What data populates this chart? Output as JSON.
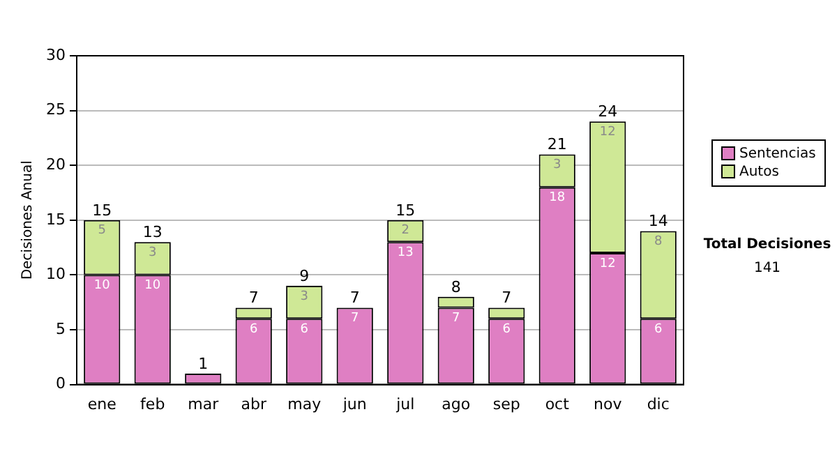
{
  "chart_data": {
    "type": "bar",
    "stacked": true,
    "ylabel": "Decisiones Anual",
    "categories": [
      "ene",
      "feb",
      "mar",
      "abr",
      "may",
      "jun",
      "jul",
      "ago",
      "sep",
      "oct",
      "nov",
      "dic"
    ],
    "series": [
      {
        "name": "Sentencias",
        "color": "#df7fc3",
        "values": [
          10,
          10,
          1,
          6,
          6,
          7,
          13,
          7,
          6,
          18,
          12,
          6
        ],
        "value_labels": [
          "10",
          "10",
          null,
          "6",
          "6",
          "7",
          "13",
          "7",
          "6",
          "18",
          "12",
          "6"
        ]
      },
      {
        "name": "Autos",
        "color": "#cfe896",
        "values": [
          5,
          3,
          0,
          1,
          3,
          0,
          2,
          1,
          1,
          3,
          12,
          8
        ],
        "value_labels": [
          "5",
          "3",
          null,
          null,
          "3",
          null,
          "2",
          null,
          null,
          "3",
          "12",
          "8"
        ]
      }
    ],
    "totals": [
      "15",
      "13",
      "1",
      "7",
      "9",
      "7",
      "15",
      "8",
      "7",
      "21",
      "24",
      "14"
    ],
    "ylim": [
      0,
      30
    ],
    "yticks": [
      0,
      5,
      10,
      15,
      20,
      25,
      30
    ],
    "grid": "y",
    "legend": "right",
    "annotations": [
      "Total Decisiones",
      "141"
    ]
  }
}
